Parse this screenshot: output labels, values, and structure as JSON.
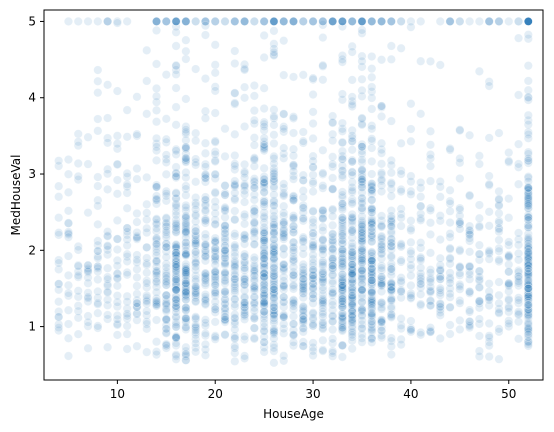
{
  "chart_data": {
    "type": "scatter",
    "title": "",
    "xlabel": "HouseAge",
    "ylabel": "MedHouseVal",
    "xlim": [
      2.5,
      53.5
    ],
    "ylim": [
      0.3,
      5.15
    ],
    "xticks": [
      10,
      20,
      30,
      40,
      50
    ],
    "yticks": [
      1,
      2,
      3,
      4,
      5
    ],
    "grid": false,
    "point_color": "#1f77b4",
    "point_opacity": 0.12,
    "x_integer_values": true,
    "x_value_range": [
      4,
      52
    ],
    "y_value_range": [
      0.5,
      5.0
    ],
    "y_cap_value": 5.0,
    "approx_point_count": 3000,
    "density_peaks_x": [
      16,
      17,
      25,
      26,
      33,
      34,
      35,
      36,
      52
    ]
  }
}
